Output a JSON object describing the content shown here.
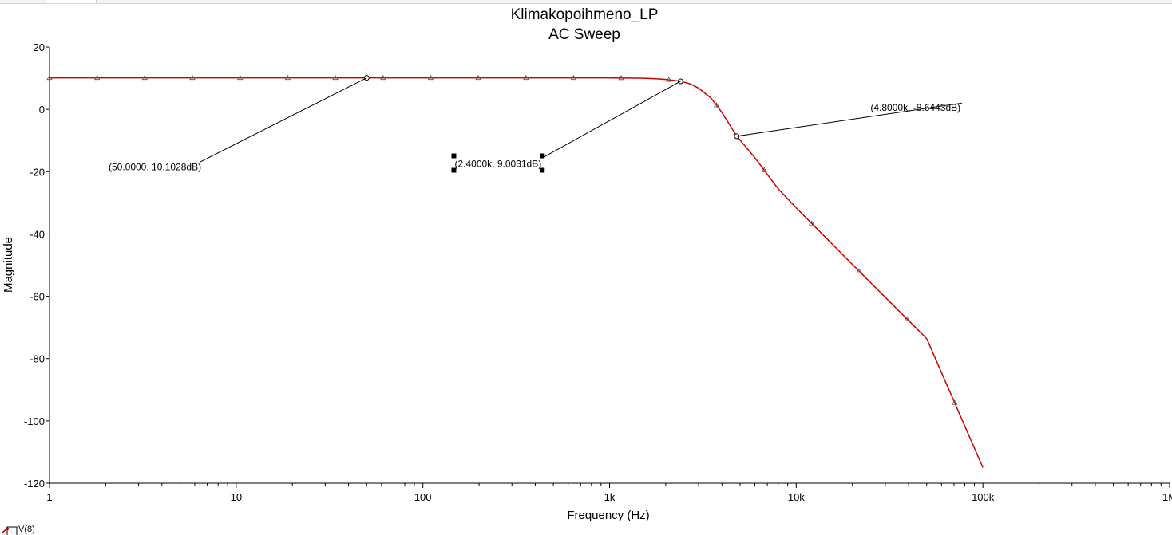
{
  "chart_data": {
    "type": "line",
    "title": "Klimakopoihmeno_LP",
    "subtitle": "AC Sweep",
    "xlabel": "Frequency (Hz)",
    "ylabel": "Magnitude",
    "xscale": "log",
    "xlim": [
      1,
      1000000
    ],
    "ylim": [
      -120,
      20
    ],
    "x_ticks": [
      {
        "value": 1,
        "label": "1"
      },
      {
        "value": 10,
        "label": "10"
      },
      {
        "value": 100,
        "label": "100"
      },
      {
        "value": 1000,
        "label": "1k"
      },
      {
        "value": 10000,
        "label": "10k"
      },
      {
        "value": 100000,
        "label": "100k"
      },
      {
        "value": 1000000,
        "label": "1M"
      }
    ],
    "y_ticks": [
      {
        "value": 20,
        "label": "20"
      },
      {
        "value": 0,
        "label": "0"
      },
      {
        "value": -20,
        "label": "-20"
      },
      {
        "value": -40,
        "label": "-40"
      },
      {
        "value": -60,
        "label": "-60"
      },
      {
        "value": -80,
        "label": "-80"
      },
      {
        "value": -100,
        "label": "-100"
      },
      {
        "value": -120,
        "label": "-120"
      }
    ],
    "grid": false,
    "line_color": "#cc0000",
    "marker_color": "#555555",
    "series": [
      {
        "name": "V(8)",
        "x": [
          1,
          10,
          100,
          500,
          1000,
          1500,
          1800,
          2000,
          2200,
          2400,
          2700,
          3000,
          3500,
          4000,
          4800,
          6000,
          8000,
          10000,
          20000,
          50000,
          100000
        ],
        "y": [
          10.1,
          10.1,
          10.1,
          10.1,
          10.1,
          10.0,
          9.8,
          9.6,
          9.3,
          9.0,
          8.2,
          6.8,
          3.6,
          -1.0,
          -8.6,
          -15.5,
          -25.5,
          -31.6,
          -49.8,
          -73.6,
          -115.0
        ]
      }
    ],
    "annotations": [
      {
        "point": [
          50,
          10.1028
        ],
        "label": "(50.0000, 10.1028dB)",
        "label_at": [
          6.5,
          -18.5
        ],
        "anchor": "end"
      },
      {
        "point": [
          2400,
          9.0031
        ],
        "label": "(2.4000k, 9.0031dB)",
        "label_at": [
          148,
          -17.5
        ],
        "anchor": "start",
        "selected": true
      },
      {
        "point": [
          4800,
          -8.6443
        ],
        "label": "(4.8000k, -8.6443dB)",
        "label_at": [
          25000,
          0.5
        ],
        "anchor": "start"
      }
    ],
    "legend": {
      "label": "V(8)",
      "placement": "bottom-left"
    }
  }
}
